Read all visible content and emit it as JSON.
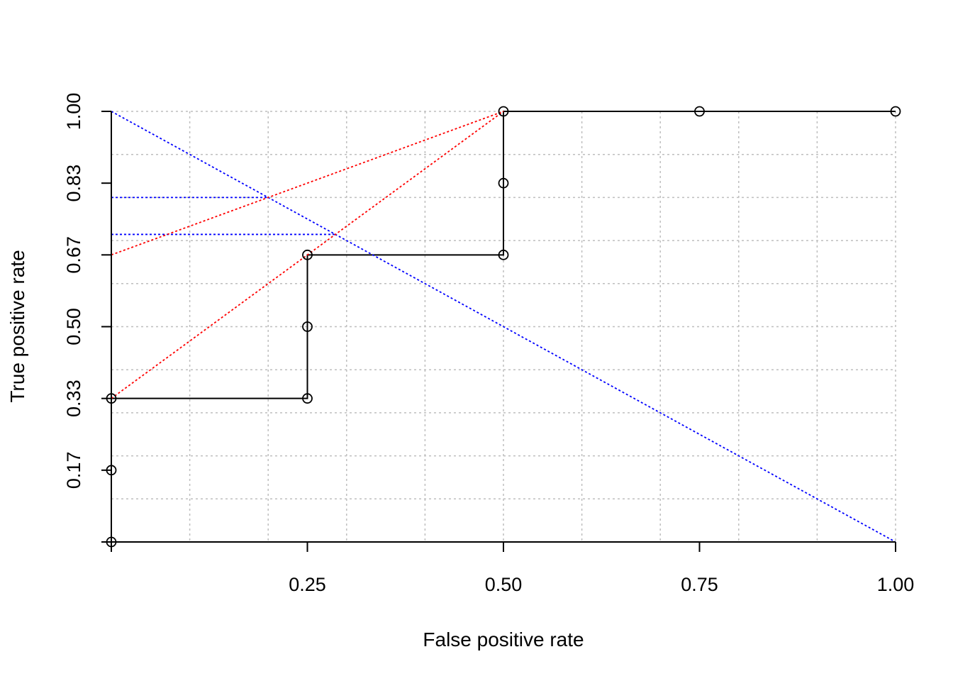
{
  "chart_data": {
    "type": "line",
    "title": "",
    "xlabel": "False positive rate",
    "ylabel": "True positive rate",
    "xlim": [
      0,
      1
    ],
    "ylim": [
      0,
      1
    ],
    "xticks": [
      0.25,
      0.5,
      0.75,
      1.0
    ],
    "xtick_labels": [
      "0.25",
      "0.50",
      "0.75",
      "1.00"
    ],
    "yticks": [
      0.1667,
      0.3333,
      0.5,
      0.6667,
      0.8333,
      1.0
    ],
    "ytick_labels": [
      "0.17",
      "0.33",
      "0.50",
      "0.67",
      "0.83",
      "1.00"
    ],
    "grid": true,
    "grid_x": [
      0.1,
      0.2,
      0.3,
      0.4,
      0.5,
      0.6,
      0.7,
      0.8,
      0.9,
      1.0
    ],
    "grid_y": [
      0.1,
      0.2,
      0.3,
      0.4,
      0.5,
      0.6,
      0.7,
      0.8,
      0.9,
      1.0
    ],
    "series": [
      {
        "style": "step-with-points",
        "color": "#000000",
        "x": [
          0,
          0,
          0,
          0.25,
          0.25,
          0.25,
          0.5,
          0.5,
          0.5,
          0.75,
          1.0
        ],
        "y": [
          0,
          0.1667,
          0.3333,
          0.3333,
          0.5,
          0.6667,
          0.6667,
          0.8333,
          1.0,
          1.0,
          1.0
        ]
      },
      {
        "style": "dotted",
        "color": "#0000ff",
        "x": [
          0,
          1
        ],
        "y": [
          1,
          0
        ]
      },
      {
        "style": "dotted",
        "color": "#0000ff",
        "x": [
          0,
          0.2
        ],
        "y": [
          0.8,
          0.8
        ]
      },
      {
        "style": "dotted",
        "color": "#0000ff",
        "x": [
          0,
          0.2857
        ],
        "y": [
          0.7143,
          0.7143
        ]
      },
      {
        "style": "dotted",
        "color": "#ff0000",
        "x": [
          0,
          0.5
        ],
        "y": [
          0.6667,
          1.0
        ]
      },
      {
        "style": "dotted",
        "color": "#ff0000",
        "x": [
          0,
          0.5
        ],
        "y": [
          0.3333,
          1.0
        ]
      }
    ],
    "colors": {
      "grid": "#bebebe",
      "axis": "#000000",
      "blue": "#0000ff",
      "red": "#ff0000"
    }
  }
}
